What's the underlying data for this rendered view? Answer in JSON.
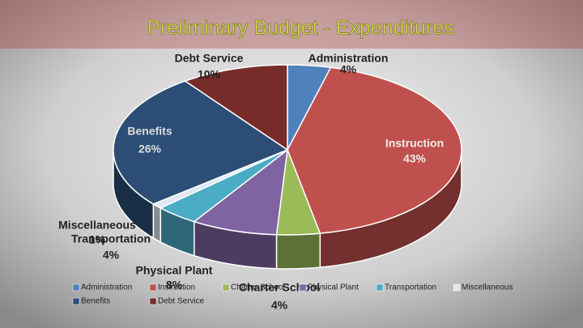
{
  "chart_data": {
    "type": "pie",
    "title": "Preliminary Budget - Expenditures",
    "categories": [
      "Administration",
      "Instruction",
      "Charter School",
      "Physical Plant",
      "Transportation",
      "Miscellaneous",
      "Benefits",
      "Debt Service"
    ],
    "values": [
      4,
      43,
      4,
      8,
      4,
      1,
      26,
      10
    ],
    "value_labels": [
      "4%",
      "43%",
      "4%",
      "8%",
      "4%",
      "1%",
      "26%",
      "10%"
    ],
    "colors": [
      "#4f81bd",
      "#c0504d",
      "#9bbb59",
      "#8064a2",
      "#4bacc6",
      "#dfe8f2",
      "#2c4d75",
      "#772c2a"
    ],
    "legend": "bottom"
  }
}
